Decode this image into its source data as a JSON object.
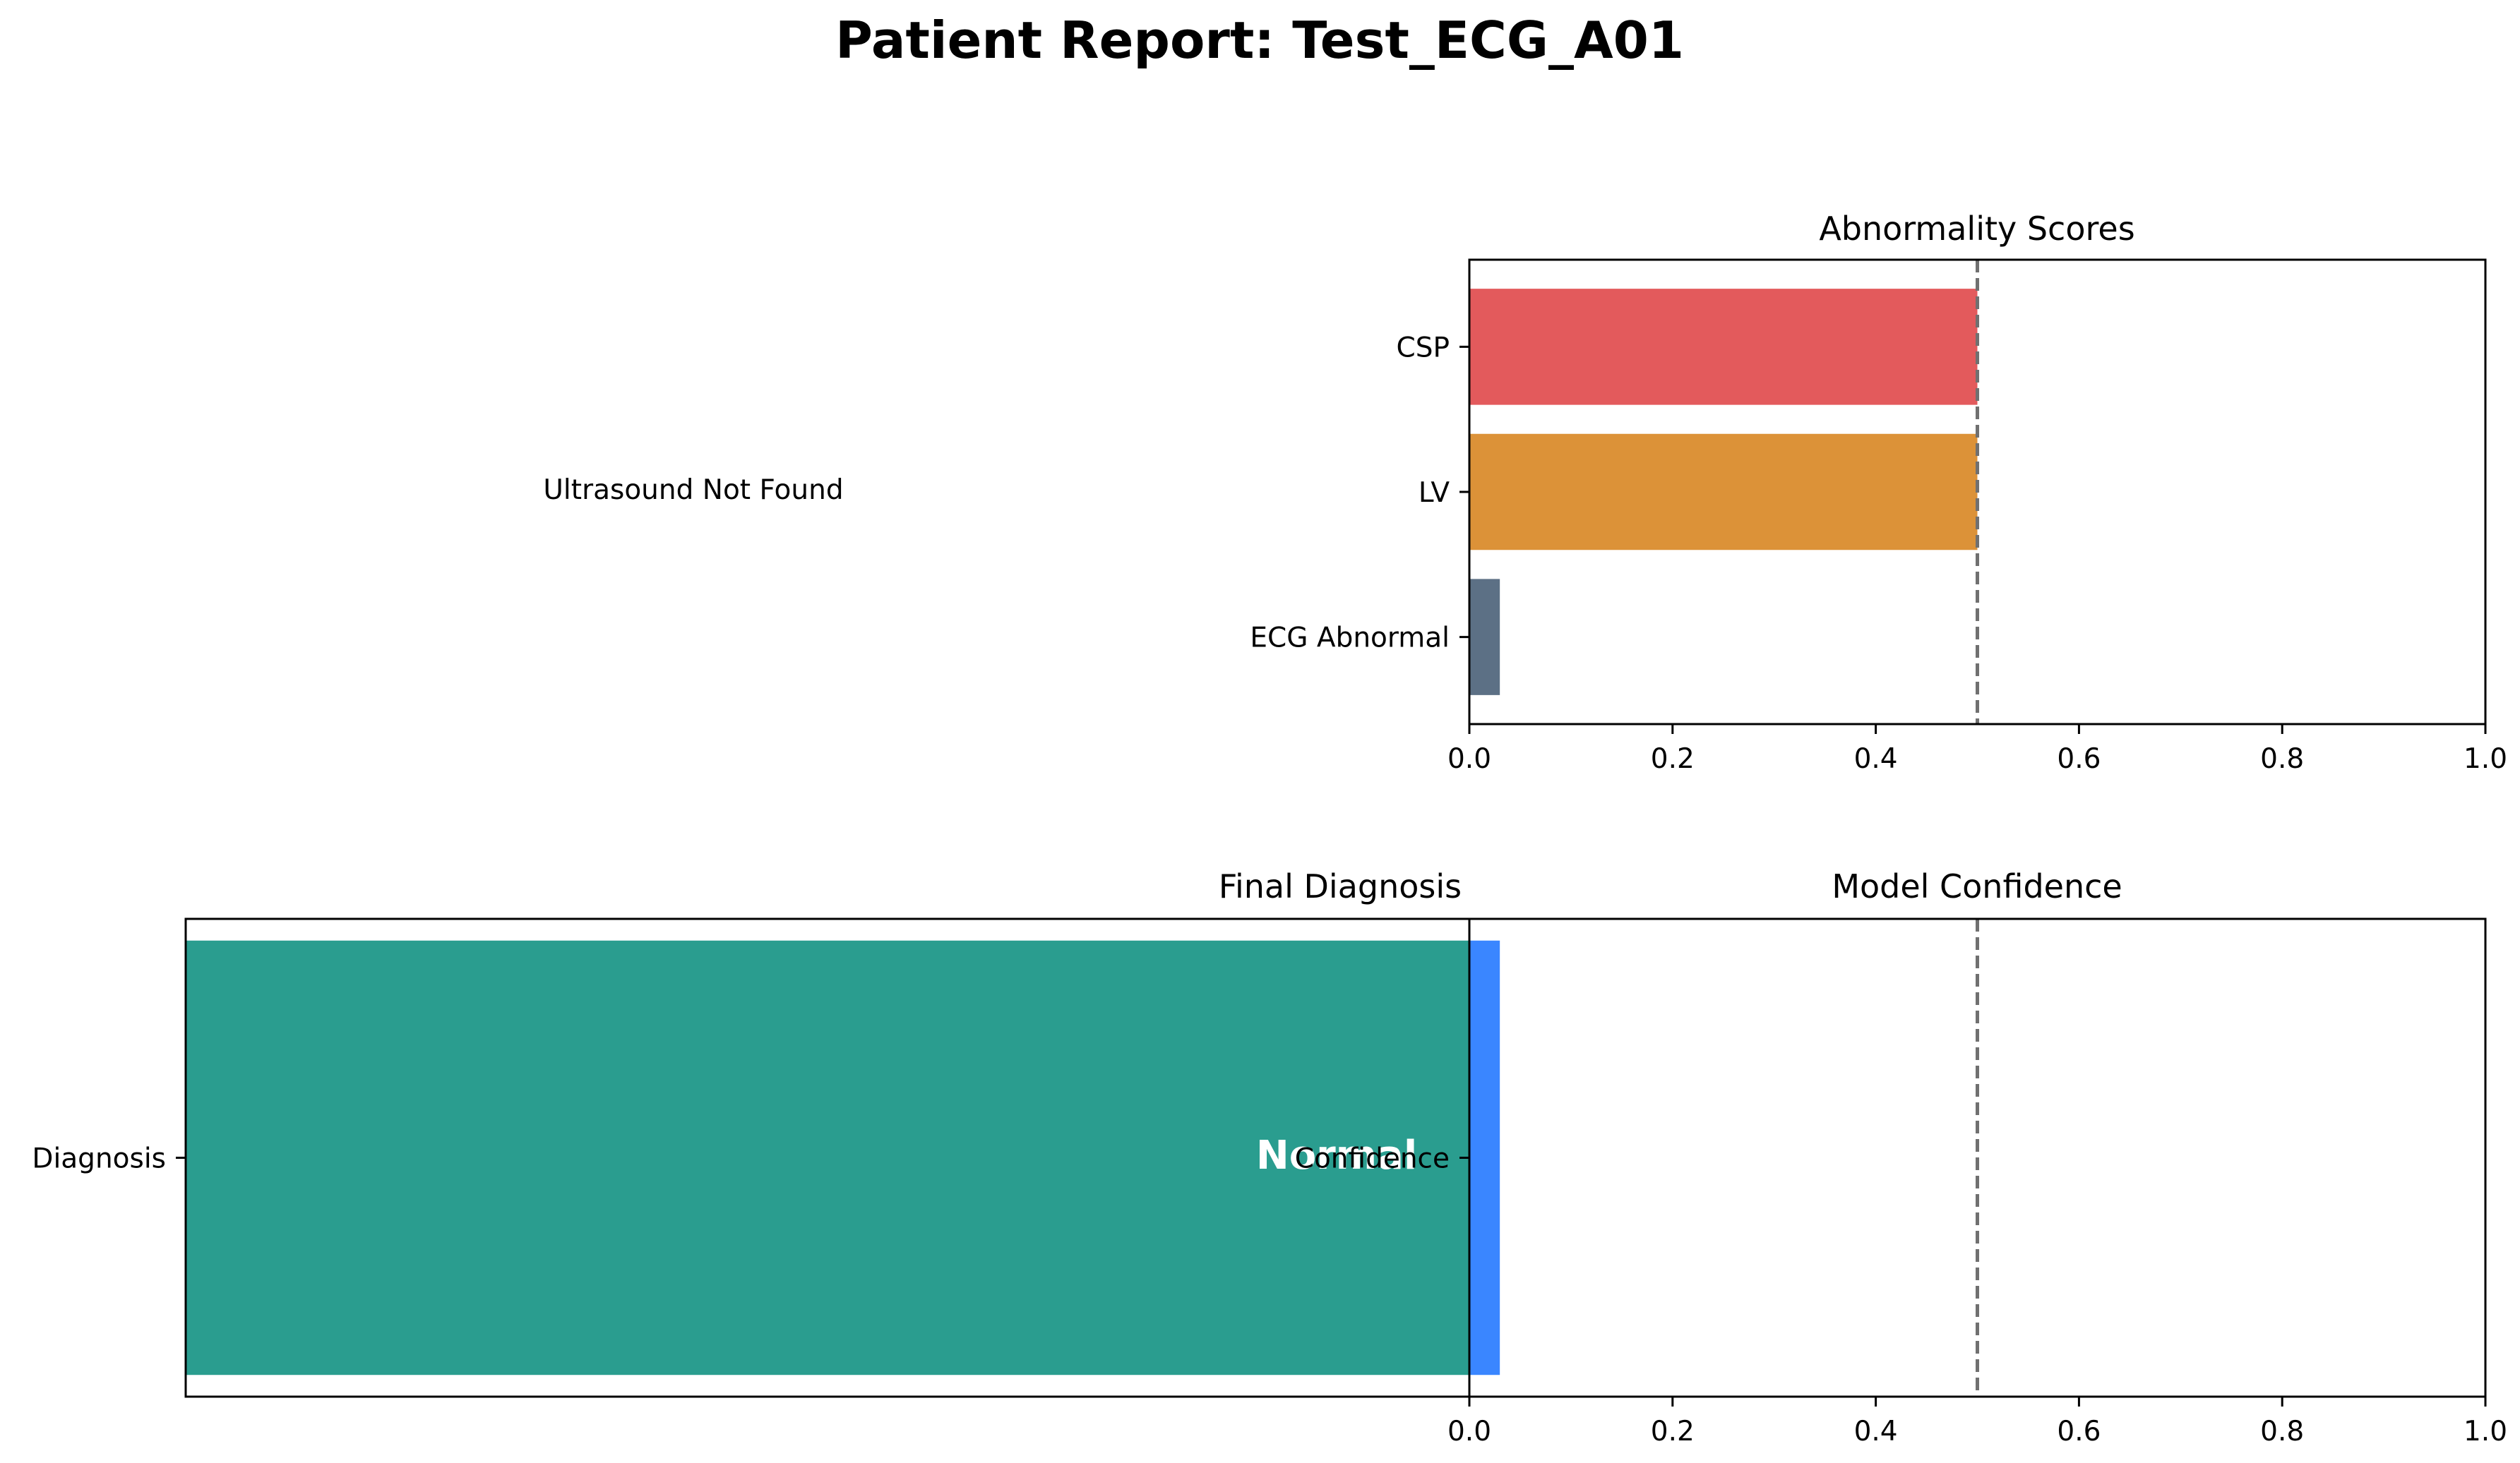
{
  "title": "Patient Report: Test_ECG_A01",
  "ultrasound_panel": {
    "message": "Ultrasound Not Found"
  },
  "chart_data": [
    {
      "type": "bar",
      "orientation": "horizontal",
      "title": "Abnormality Scores",
      "categories": [
        "CSP",
        "LV",
        "ECG Abnormal"
      ],
      "values": [
        0.5,
        0.5,
        0.03
      ],
      "colors": [
        "#e35a5c",
        "#dc9238",
        "#5c7085"
      ],
      "xlim": [
        0.0,
        1.0
      ],
      "xticks": [
        "0.0",
        "0.2",
        "0.4",
        "0.6",
        "0.8",
        "1.0"
      ],
      "threshold": 0.5,
      "threshold_color": "#707070",
      "grid": false
    },
    {
      "type": "bar",
      "orientation": "horizontal",
      "title": "Final Diagnosis",
      "categories": [
        "Diagnosis"
      ],
      "values": [
        1
      ],
      "colors": [
        "#2a9d8f"
      ],
      "bar_label": "Normal",
      "grid": false
    },
    {
      "type": "bar",
      "orientation": "horizontal",
      "title": "Model Confidence",
      "categories": [
        "Confidence"
      ],
      "values": [
        0.03
      ],
      "colors": [
        "#3a86ff"
      ],
      "xlim": [
        0.0,
        1.0
      ],
      "xticks": [
        "0.0",
        "0.2",
        "0.4",
        "0.6",
        "0.8",
        "1.0"
      ],
      "threshold": 0.5,
      "threshold_color": "#707070",
      "grid": false
    }
  ]
}
